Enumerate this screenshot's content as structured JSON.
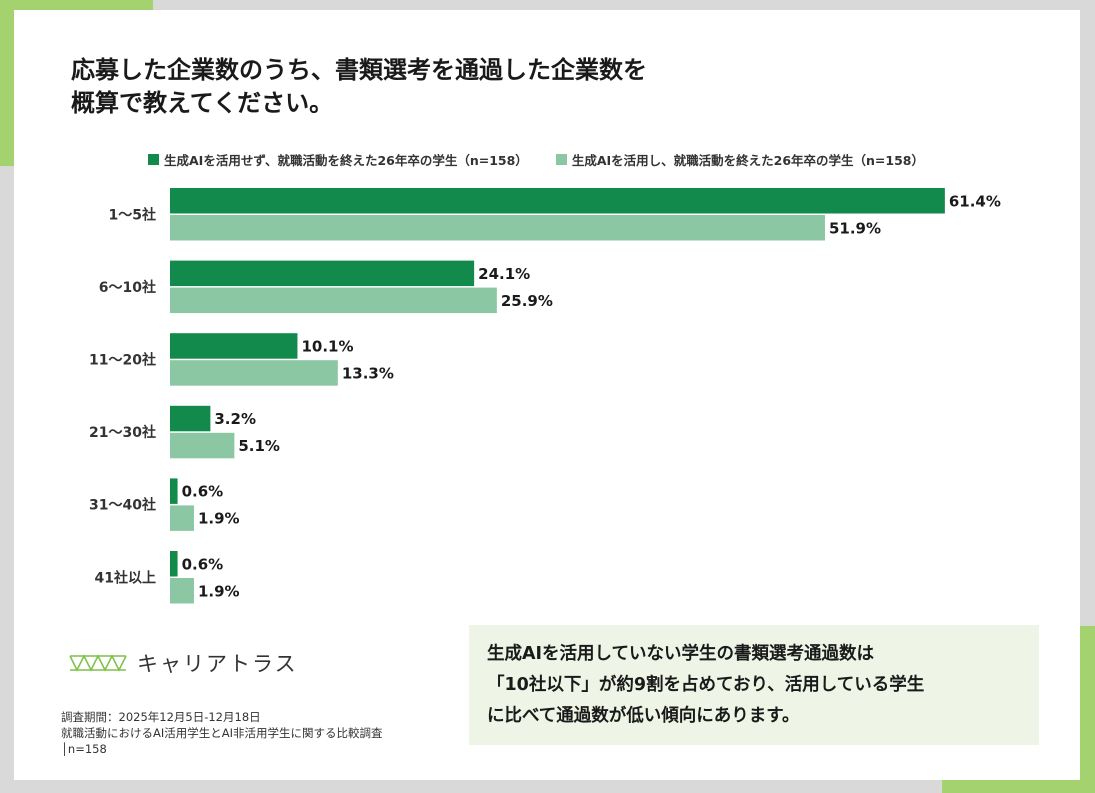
{
  "title_lines": [
    "応募した企業数のうち、書類選考を通過した企業数を",
    "概算で教えてください。"
  ],
  "colors": {
    "accent": "#a4d26f",
    "summary_bg": "#eef5e6"
  },
  "chart_data": {
    "type": "bar",
    "orientation": "horizontal",
    "title": "応募した企業数のうち、書類選考を通過した企業数を概算で教えてください。",
    "categories": [
      "1〜5社",
      "6〜10社",
      "11〜20社",
      "21〜30社",
      "31〜40社",
      "41社以上"
    ],
    "series": [
      {
        "name": "生成AIを活用せず、就職活動を終えた26年卒の学生（n=158）",
        "color": "#118a4c",
        "values": [
          61.4,
          24.1,
          10.1,
          3.2,
          0.6,
          0.6
        ]
      },
      {
        "name": "生成AIを活用し、就職活動を終えた26年卒の学生（n=158）",
        "color": "#8cc7a4",
        "values": [
          51.9,
          25.9,
          13.3,
          5.1,
          1.9,
          1.9
        ]
      }
    ],
    "value_suffix": "%",
    "legend_position": "top",
    "grid": false
  },
  "logo": {
    "text": "キャリアトラス",
    "icon": "triangle-pattern-logo"
  },
  "footnote": [
    "調査期間：2025年12月5日-12月18日",
    "就職活動におけるAI活用学生とAI非活用学生に関する比較調査",
    "│n=158"
  ],
  "summary_lines": [
    "生成AIを活用していない学生の書類選考通過数は",
    "「10社以下」が約9割を占めており、活用している学生",
    "に比べて通過数が低い傾向にあります。"
  ]
}
